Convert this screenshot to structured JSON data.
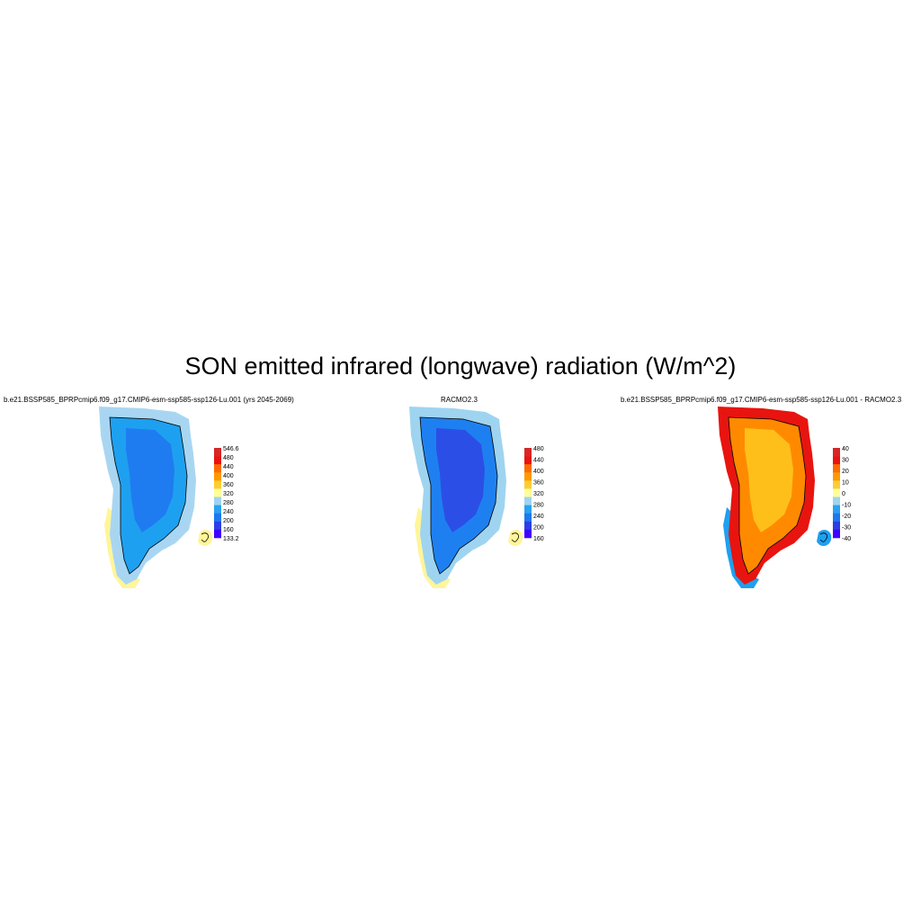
{
  "figure": {
    "title": "SON emitted infrared (longwave) radiation (W/m^2)"
  },
  "panels": [
    {
      "title": "b.e21.BSSP585_BPRPcmip6.f09_g17.CMIP6-esm-ssp585-ssp126-Lu.001 (yrs 2045-2069)",
      "colorbar": {
        "labels": [
          "546.6",
          "480",
          "440",
          "400",
          "360",
          "320",
          "280",
          "240",
          "200",
          "160",
          "133.2"
        ],
        "colors": [
          "#d62728",
          "#e8140f",
          "#ff6a00",
          "#ff9900",
          "#ffcc33",
          "#ffff99",
          "#9fd4f0",
          "#2ca2ee",
          "#1e78f0",
          "#2b3fe6",
          "#3f00ff"
        ]
      },
      "fill": {
        "outer": "#a8d6f2",
        "mid": "#1ea0f0",
        "inner": "#1e7cf0",
        "coast": "#fff59a"
      }
    },
    {
      "title": "RACMO2.3",
      "colorbar": {
        "labels": [
          "480",
          "440",
          "400",
          "360",
          "320",
          "280",
          "240",
          "200",
          "160"
        ],
        "colors": [
          "#d62728",
          "#e8140f",
          "#ff6a00",
          "#ff9900",
          "#ffcc33",
          "#ffff99",
          "#9fd4f0",
          "#2ca2ee",
          "#1e78f0",
          "#2b3fe6",
          "#3f00ff"
        ]
      },
      "fill": {
        "outer": "#9fd4f0",
        "mid": "#1e80f0",
        "inner": "#2b4fe6",
        "coast": "#fff59a"
      }
    },
    {
      "title": "b.e21.BSSP585_BPRPcmip6.f09_g17.CMIP6-esm-ssp585-ssp126-Lu.001 - RACMO2.3",
      "colorbar": {
        "labels": [
          "40",
          "30",
          "20",
          "10",
          "0",
          "-10",
          "-20",
          "-30",
          "-40"
        ],
        "colors": [
          "#d62728",
          "#e8140f",
          "#ff6a00",
          "#ff9900",
          "#ffcc33",
          "#ffff99",
          "#9fd4f0",
          "#2ca2ee",
          "#1e78f0",
          "#2b3fe6",
          "#3f00ff"
        ]
      },
      "fill": {
        "outer": "#e8140f",
        "mid": "#ff8a00",
        "inner": "#ffbf1a",
        "coast": "#1ea0f0"
      }
    }
  ]
}
